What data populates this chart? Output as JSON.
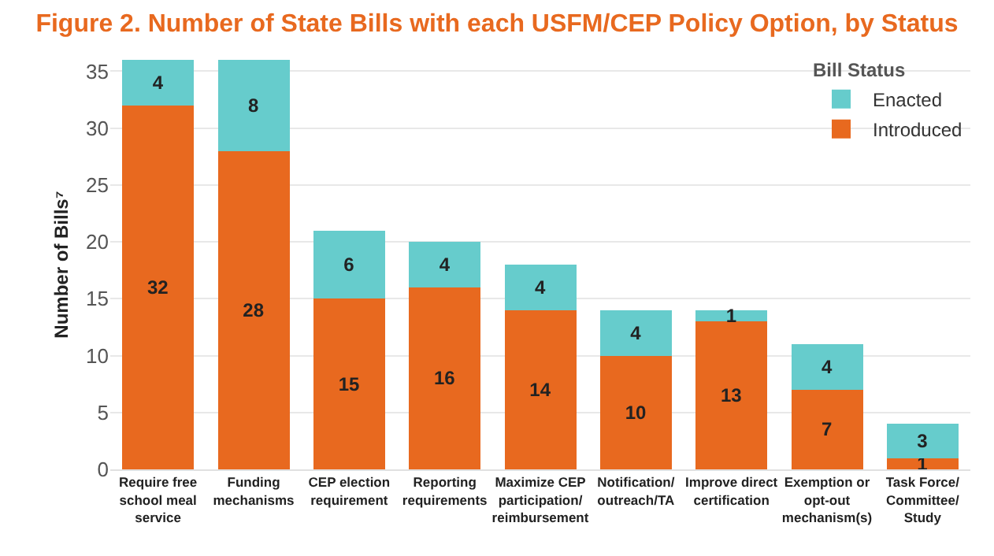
{
  "chart_data": {
    "type": "bar",
    "title": "Figure 2. Number of State Bills with each USFM/CEP Policy Option, by Status",
    "ylabel": "Number of Bills⁷",
    "legend_title": "Bill Status",
    "categories": [
      "Require free school meal service",
      "Funding mechanisms",
      "CEP election requirement",
      "Reporting requirements",
      "Maximize CEP participation/ reimbursement",
      "Notification/ outreach/TA",
      "Improve direct certification",
      "Exemption or opt-out mechanism(s)",
      "Task Force/ Committee/ Study"
    ],
    "series": [
      {
        "name": "Introduced",
        "color": "#e8691f",
        "values": [
          32,
          28,
          15,
          16,
          14,
          10,
          13,
          7,
          1
        ]
      },
      {
        "name": "Enacted",
        "color": "#66cccc",
        "values": [
          4,
          8,
          6,
          4,
          4,
          4,
          1,
          4,
          3
        ]
      }
    ],
    "stacked": true,
    "data_labels": true,
    "ylim": [
      0,
      36
    ],
    "yticks": [
      0,
      5,
      10,
      15,
      20,
      25,
      30,
      35
    ],
    "grid": "y",
    "legend": "top right"
  }
}
